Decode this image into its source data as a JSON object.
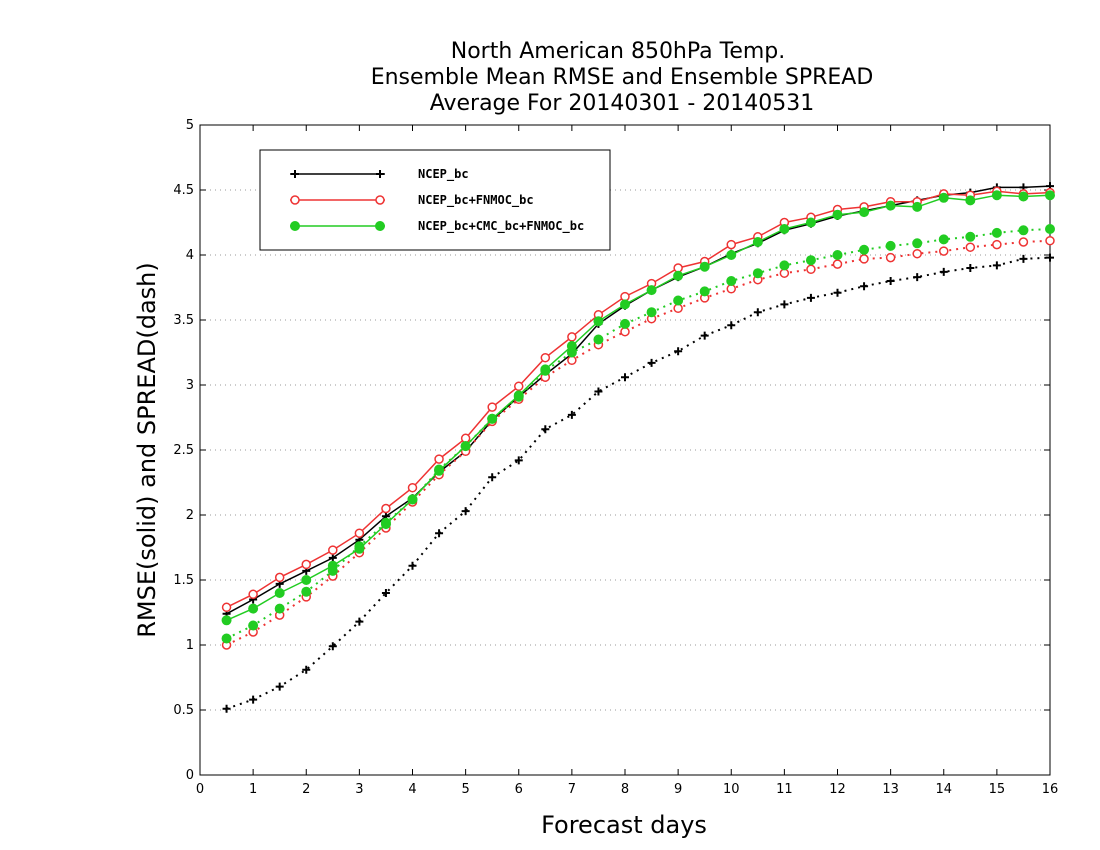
{
  "chart_data": {
    "type": "line",
    "title_lines": [
      "North American 850hPa Temp.",
      "Ensemble Mean RMSE and Ensemble SPREAD",
      "Average For 20140301 - 20140531"
    ],
    "xlabel": "Forecast days",
    "ylabel": "RMSE(solid) and SPREAD(dash)",
    "xlim": [
      0,
      16
    ],
    "ylim": [
      0,
      5
    ],
    "xticks": [
      "0",
      "1",
      "2",
      "3",
      "4",
      "5",
      "6",
      "7",
      "8",
      "9",
      "10",
      "11",
      "12",
      "13",
      "14",
      "15",
      "16"
    ],
    "yticks": [
      "0",
      "0.5",
      "1",
      "1.5",
      "2",
      "2.5",
      "3",
      "3.5",
      "4",
      "4.5",
      "5"
    ],
    "grid": "horizontal dotted",
    "legend_position": "top-left",
    "x": [
      0.5,
      1,
      1.5,
      2,
      2.5,
      3,
      3.5,
      4,
      4.5,
      5,
      5.5,
      6,
      6.5,
      7,
      7.5,
      8,
      8.5,
      9,
      9.5,
      10,
      10.5,
      11,
      11.5,
      12,
      12.5,
      13,
      13.5,
      14,
      14.5,
      15,
      15.5,
      16
    ],
    "series": [
      {
        "name": "NCEP_bc",
        "color": "#000000",
        "marker": "plus",
        "rmse": [
          1.24,
          1.35,
          1.47,
          1.57,
          1.67,
          1.81,
          1.99,
          2.13,
          2.33,
          2.49,
          2.73,
          2.91,
          3.08,
          3.24,
          3.47,
          3.61,
          3.73,
          3.83,
          3.91,
          4.01,
          4.09,
          4.19,
          4.24,
          4.3,
          4.34,
          4.38,
          4.42,
          4.46,
          4.48,
          4.52,
          4.52,
          4.53
        ],
        "spread": [
          0.51,
          0.58,
          0.68,
          0.81,
          0.99,
          1.18,
          1.4,
          1.61,
          1.86,
          2.03,
          2.29,
          2.42,
          2.66,
          2.77,
          2.95,
          3.06,
          3.17,
          3.26,
          3.38,
          3.46,
          3.56,
          3.62,
          3.67,
          3.71,
          3.76,
          3.8,
          3.83,
          3.87,
          3.9,
          3.92,
          3.97,
          3.98
        ]
      },
      {
        "name": "NCEP_bc+FNMOC_bc",
        "color": "#ee3333",
        "marker": "open-circle",
        "rmse": [
          1.29,
          1.39,
          1.52,
          1.62,
          1.73,
          1.86,
          2.05,
          2.21,
          2.43,
          2.59,
          2.83,
          2.99,
          3.21,
          3.37,
          3.54,
          3.68,
          3.78,
          3.9,
          3.95,
          4.08,
          4.14,
          4.25,
          4.29,
          4.35,
          4.37,
          4.41,
          4.41,
          4.47,
          4.46,
          4.49,
          4.47,
          4.48
        ],
        "spread": [
          1.0,
          1.1,
          1.23,
          1.37,
          1.53,
          1.71,
          1.9,
          2.1,
          2.31,
          2.49,
          2.72,
          2.89,
          3.06,
          3.19,
          3.31,
          3.41,
          3.51,
          3.59,
          3.67,
          3.74,
          3.81,
          3.86,
          3.89,
          3.93,
          3.97,
          3.98,
          4.01,
          4.03,
          4.06,
          4.08,
          4.1,
          4.11
        ]
      },
      {
        "name": "NCEP_bc+CMC_bc+FNMOC_bc",
        "color": "#22cc22",
        "marker": "filled-circle",
        "rmse": [
          1.19,
          1.28,
          1.4,
          1.5,
          1.61,
          1.74,
          1.93,
          2.12,
          2.34,
          2.53,
          2.74,
          2.92,
          3.12,
          3.3,
          3.49,
          3.62,
          3.73,
          3.84,
          3.91,
          4.0,
          4.1,
          4.2,
          4.25,
          4.31,
          4.33,
          4.38,
          4.37,
          4.44,
          4.42,
          4.46,
          4.45,
          4.46
        ],
        "spread": [
          1.05,
          1.15,
          1.28,
          1.41,
          1.57,
          1.76,
          1.94,
          2.12,
          2.35,
          2.53,
          2.74,
          2.91,
          3.11,
          3.25,
          3.35,
          3.47,
          3.56,
          3.65,
          3.72,
          3.8,
          3.86,
          3.92,
          3.96,
          4.0,
          4.04,
          4.07,
          4.09,
          4.12,
          4.14,
          4.17,
          4.19,
          4.2
        ]
      }
    ]
  }
}
